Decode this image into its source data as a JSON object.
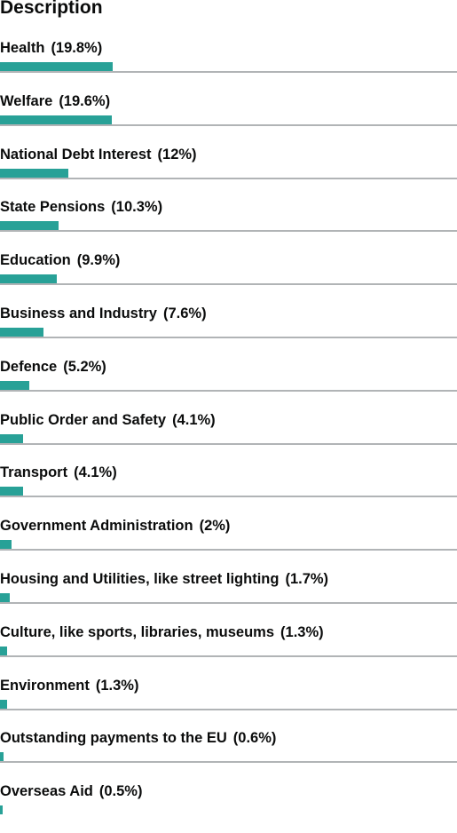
{
  "chart_data": {
    "type": "bar",
    "title": "Description",
    "categories": [
      "Health",
      "Welfare",
      "National Debt Interest",
      "State Pensions",
      "Education",
      "Business and Industry",
      "Defence",
      "Public Order and Safety",
      "Transport",
      "Government Administration",
      "Housing and Utilities, like street lighting",
      "Culture, like sports, libraries, museums",
      "Environment",
      "Outstanding payments to the EU",
      "Overseas Aid"
    ],
    "values": [
      19.8,
      19.6,
      12,
      10.3,
      9.9,
      7.6,
      5.2,
      4.1,
      4.1,
      2,
      1.7,
      1.3,
      1.3,
      0.6,
      0.5
    ],
    "value_labels": [
      "(19.8%)",
      "(19.6%)",
      "(12%)",
      "(10.3%)",
      "(9.9%)",
      "(7.6%)",
      "(5.2%)",
      "(4.1%)",
      "(4.1%)",
      "(2%)",
      "(1.7%)",
      "(1.3%)",
      "(1.3%)",
      "(0.6%)",
      "(0.5%)"
    ],
    "unit": "%",
    "orientation": "horizontal",
    "xlim": [
      0,
      80
    ],
    "grid": false,
    "bar_color": "#28a197",
    "rule_color": "#b1b4b6"
  }
}
